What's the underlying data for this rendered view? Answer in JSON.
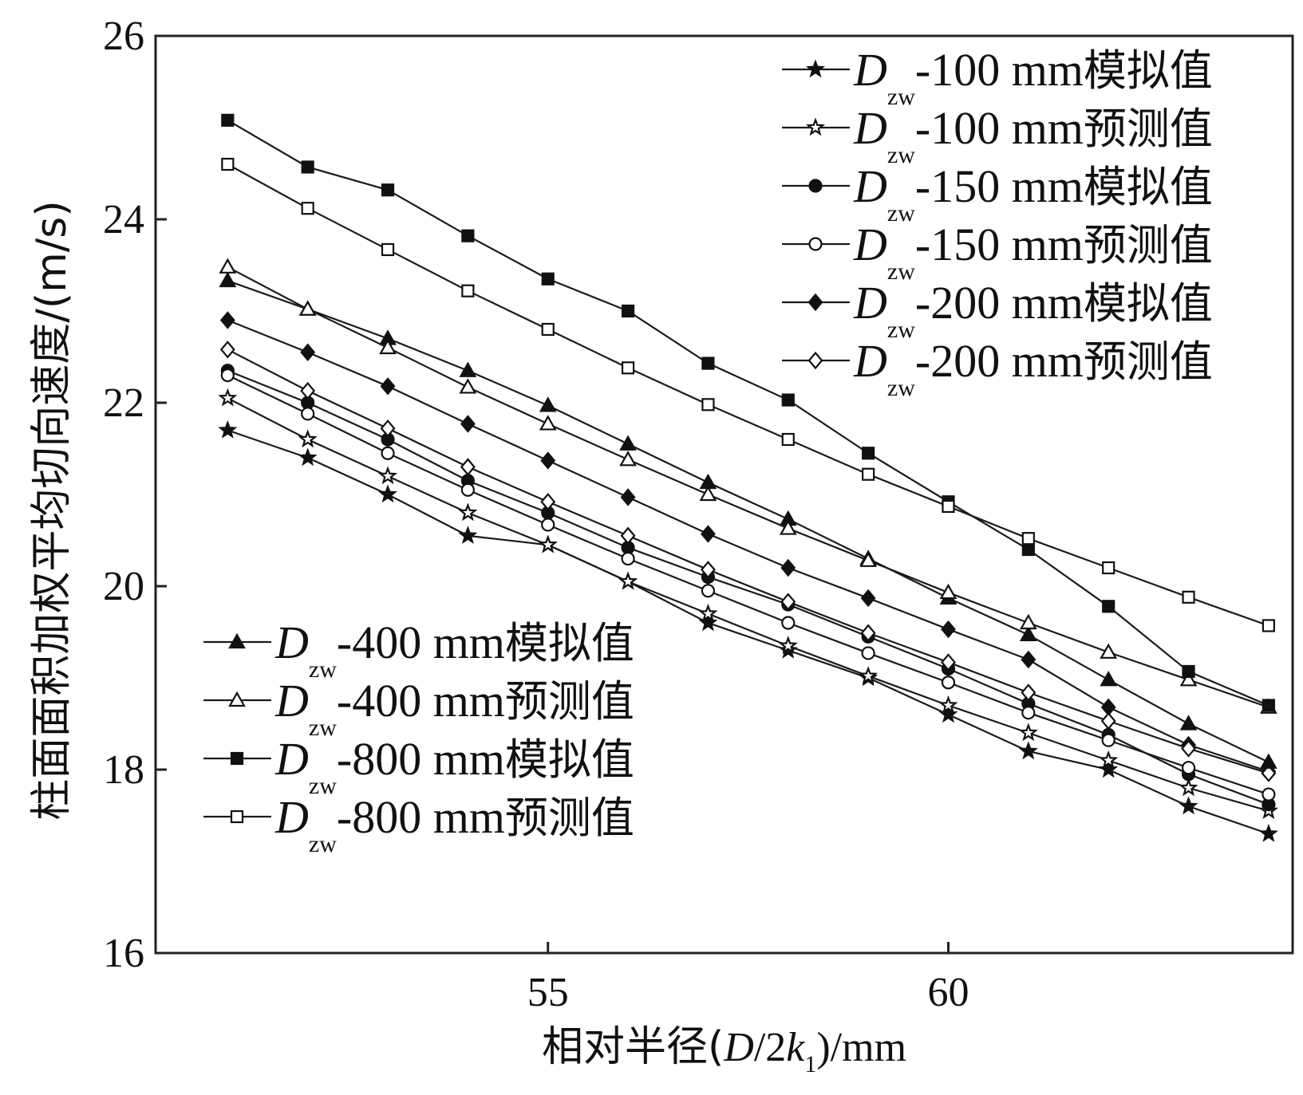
{
  "chart_data": {
    "type": "line",
    "xlabel": {
      "prefix": "相对半径(",
      "italic": "D",
      "mid": "/2",
      "italic2": "k",
      "sub": "1",
      "suffix": ")/mm"
    },
    "ylabel": "柱面面积加权平均切向速度/(m/s)",
    "xlim": [
      50.1,
      64.3
    ],
    "ylim": [
      16,
      26
    ],
    "x_ticks": [
      55,
      60
    ],
    "y_ticks": [
      16,
      18,
      20,
      22,
      24,
      26
    ],
    "x": [
      51,
      52,
      53,
      54,
      55,
      56,
      57,
      58,
      59,
      60,
      61,
      62,
      63,
      64
    ],
    "series": [
      {
        "name_parts": {
          "italic": "D",
          "sub": "zw",
          "text": "-100 mm",
          "cjk": "模拟值"
        },
        "marker": "star-filled",
        "values": [
          21.7,
          21.4,
          21.0,
          20.55,
          20.45,
          20.05,
          19.6,
          19.3,
          19.0,
          18.6,
          18.2,
          18.0,
          17.6,
          17.3
        ]
      },
      {
        "name_parts": {
          "italic": "D",
          "sub": "zw",
          "text": "-100 mm",
          "cjk": "预测值"
        },
        "marker": "star-open",
        "values": [
          22.05,
          21.6,
          21.2,
          20.8,
          20.45,
          20.05,
          19.7,
          19.35,
          19.02,
          18.7,
          18.4,
          18.1,
          17.8,
          17.55
        ]
      },
      {
        "name_parts": {
          "italic": "D",
          "sub": "zw",
          "text": "-150 mm",
          "cjk": "模拟值"
        },
        "marker": "circle-filled",
        "values": [
          22.35,
          22.0,
          21.6,
          21.15,
          20.8,
          20.42,
          20.1,
          19.8,
          19.45,
          19.1,
          18.72,
          18.38,
          17.95,
          17.62
        ]
      },
      {
        "name_parts": {
          "italic": "D",
          "sub": "zw",
          "text": "-150 mm",
          "cjk": "预测值"
        },
        "marker": "circle-open",
        "values": [
          22.3,
          21.88,
          21.45,
          21.05,
          20.67,
          20.3,
          19.95,
          19.6,
          19.27,
          18.95,
          18.62,
          18.32,
          18.02,
          17.73
        ]
      },
      {
        "name_parts": {
          "italic": "D",
          "sub": "zw",
          "text": "-200 mm",
          "cjk": "模拟值"
        },
        "marker": "diamond-filled",
        "values": [
          22.9,
          22.55,
          22.18,
          21.77,
          21.37,
          20.97,
          20.57,
          20.2,
          19.87,
          19.53,
          19.2,
          18.68,
          18.27,
          17.98
        ]
      },
      {
        "name_parts": {
          "italic": "D",
          "sub": "zw",
          "text": "-200 mm",
          "cjk": "预测值"
        },
        "marker": "diamond-open",
        "values": [
          22.58,
          22.13,
          21.72,
          21.3,
          20.92,
          20.55,
          20.18,
          19.83,
          19.49,
          19.17,
          18.84,
          18.53,
          18.23,
          17.96
        ]
      },
      {
        "name_parts": {
          "italic": "D",
          "sub": "zw",
          "text": "-400 mm",
          "cjk": "模拟值"
        },
        "marker": "triangle-filled",
        "values": [
          23.33,
          23.02,
          22.7,
          22.35,
          21.97,
          21.55,
          21.13,
          20.73,
          20.3,
          19.87,
          19.47,
          18.98,
          18.5,
          18.08
        ]
      },
      {
        "name_parts": {
          "italic": "D",
          "sub": "zw",
          "text": "-400 mm",
          "cjk": "预测值"
        },
        "marker": "triangle-open",
        "values": [
          23.48,
          23.02,
          22.6,
          22.17,
          21.77,
          21.38,
          21.0,
          20.63,
          20.28,
          19.93,
          19.6,
          19.28,
          18.98,
          18.68
        ]
      },
      {
        "name_parts": {
          "italic": "D",
          "sub": "zw",
          "text": "-800 mm",
          "cjk": "模拟值"
        },
        "marker": "square-filled",
        "values": [
          25.08,
          24.57,
          24.32,
          23.82,
          23.35,
          23.0,
          22.43,
          22.03,
          21.45,
          20.92,
          20.4,
          19.78,
          19.07,
          18.7
        ]
      },
      {
        "name_parts": {
          "italic": "D",
          "sub": "zw",
          "text": "-800 mm",
          "cjk": "预测值"
        },
        "marker": "square-open",
        "values": [
          24.6,
          24.12,
          23.67,
          23.22,
          22.8,
          22.38,
          21.98,
          21.6,
          21.22,
          20.87,
          20.52,
          20.2,
          19.88,
          19.57
        ]
      }
    ],
    "legends": [
      {
        "placement": "top-right",
        "series_indices": [
          0,
          1,
          2,
          3,
          4,
          5
        ]
      },
      {
        "placement": "bottom-left",
        "series_indices": [
          6,
          7,
          8,
          9
        ]
      }
    ],
    "grid": false,
    "colors": {
      "line": "#1a1a1a",
      "axis": "#222222",
      "background": "#ffffff"
    }
  }
}
